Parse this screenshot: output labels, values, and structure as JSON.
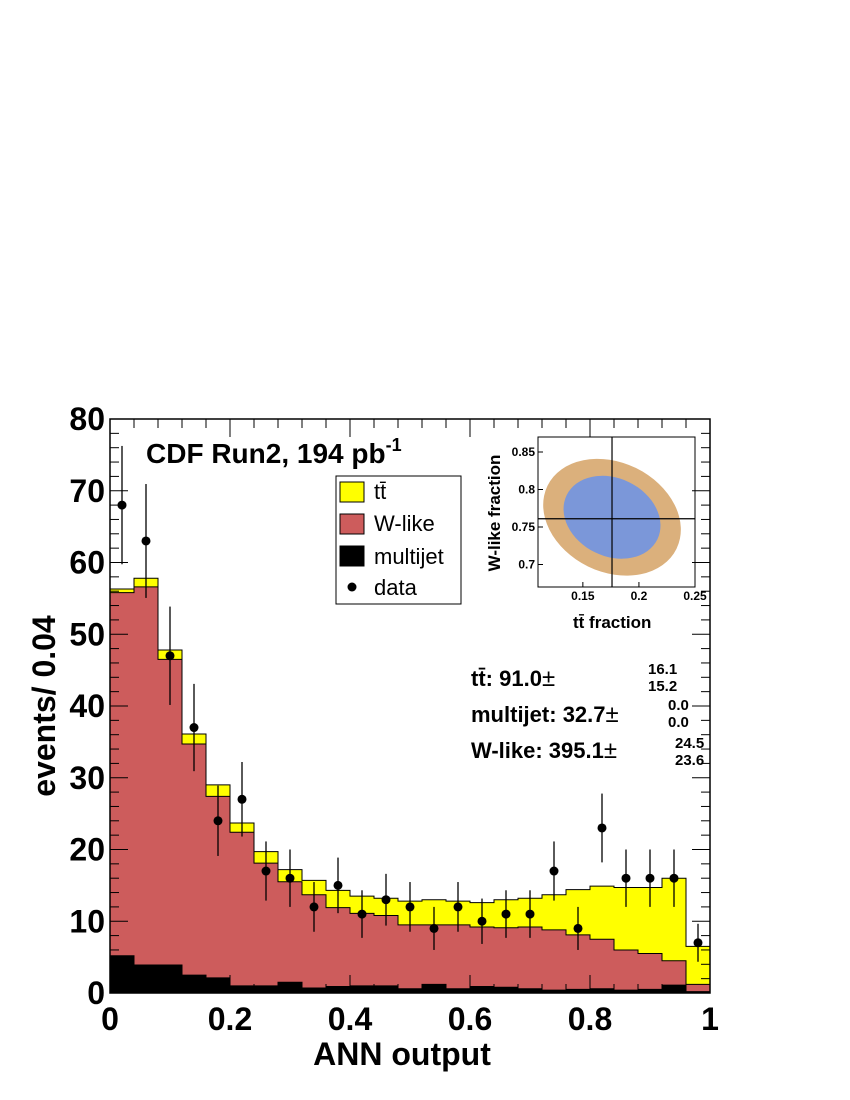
{
  "chart_data": {
    "type": "bar",
    "xlabel": "ANN output",
    "ylabel": "events/ 0.04",
    "xlim": [
      0,
      1
    ],
    "ylim": [
      0,
      80
    ],
    "x_ticks": [
      "0",
      "0.2",
      "0.4",
      "0.6",
      "0.8",
      "1"
    ],
    "y_ticks": [
      "0",
      "10",
      "20",
      "30",
      "40",
      "50",
      "60",
      "70",
      "80"
    ],
    "title_main": "CDF Run2, 194 pb",
    "title_sup": "-1",
    "colors": {
      "ttbar": "#ffff00",
      "wlike": "#cd5c5c",
      "multijet": "#000000",
      "data": "#000000"
    },
    "bin_edges": [
      0,
      0.04,
      0.08,
      0.12,
      0.16,
      0.2,
      0.24,
      0.28,
      0.32,
      0.36,
      0.4,
      0.44,
      0.48,
      0.52,
      0.56,
      0.6,
      0.64,
      0.68,
      0.72,
      0.76,
      0.8,
      0.84,
      0.88,
      0.92,
      0.96,
      1.0
    ],
    "series": [
      {
        "name": "multijet",
        "values": [
          5.2,
          3.9,
          3.9,
          2.5,
          2.1,
          1.0,
          1.0,
          1.5,
          0.7,
          0.9,
          1.0,
          1.0,
          0.6,
          1.2,
          0.6,
          0.9,
          0.8,
          0.6,
          0.4,
          0.5,
          0.6,
          0.4,
          0.5,
          1.1,
          0.2
        ]
      },
      {
        "name": "W-like",
        "values": [
          50.6,
          52.7,
          42.6,
          32.2,
          25.3,
          21.4,
          17.1,
          14.0,
          13.0,
          11.0,
          10.1,
          9.8,
          8.9,
          8.3,
          8.9,
          8.3,
          8.3,
          8.6,
          8.4,
          7.6,
          6.9,
          5.6,
          5.0,
          3.4,
          1.0
        ]
      },
      {
        "name": "tt̄",
        "values": [
          0.5,
          1.2,
          1.3,
          1.4,
          1.6,
          1.3,
          1.6,
          1.7,
          2.0,
          2.4,
          2.4,
          2.4,
          3.3,
          3.5,
          3.3,
          3.4,
          3.9,
          4.0,
          4.9,
          6.3,
          7.4,
          8.7,
          9.2,
          11.5,
          5.3
        ]
      }
    ],
    "data_points": {
      "name": "data",
      "x": [
        0.02,
        0.06,
        0.1,
        0.14,
        0.18,
        0.22,
        0.26,
        0.3,
        0.34,
        0.38,
        0.42,
        0.46,
        0.5,
        0.54,
        0.58,
        0.62,
        0.66,
        0.7,
        0.74,
        0.78,
        0.82,
        0.86,
        0.9,
        0.94,
        0.98
      ],
      "y": [
        68,
        63,
        47,
        37,
        24,
        27,
        17,
        16,
        12,
        15,
        11,
        13,
        12,
        9,
        12,
        10,
        11,
        11,
        17,
        9,
        23,
        16,
        16,
        16,
        7
      ]
    },
    "legend": [
      {
        "label": "tt̄",
        "key": "ttbar"
      },
      {
        "label": "W-like",
        "key": "wlike"
      },
      {
        "label": "multijet",
        "key": "multijet"
      },
      {
        "label": "data",
        "key": "data"
      }
    ],
    "fit_results": [
      {
        "label": "tt̄:",
        "value": "91.0",
        "pm": "±",
        "up": "16.1",
        "down": "15.2"
      },
      {
        "label": "multijet:",
        "value": "32.7",
        "pm": "±",
        "up": "0.0",
        "down": "0.0"
      },
      {
        "label": "W-like:",
        "value": "395.1",
        "pm": "±",
        "up": "24.5",
        "down": "23.6"
      }
    ],
    "inset": {
      "type": "contour",
      "xlabel": "tt̄ fraction",
      "ylabel": "W-like fraction",
      "xlim": [
        0.11,
        0.25
      ],
      "ylim": [
        0.67,
        0.87
      ],
      "x_ticks": [
        0.15,
        0.2,
        0.25
      ],
      "x_tick_labels": [
        "0.15",
        "0.2",
        "0.25"
      ],
      "y_ticks": [
        0.7,
        0.75,
        0.8,
        0.85
      ],
      "y_tick_labels": [
        "0.7",
        "0.75",
        "0.8",
        "0.85"
      ],
      "best_fit": [
        0.176,
        0.761
      ],
      "contour_1sigma": {
        "center": [
          0.176,
          0.763
        ],
        "half_width": 0.045,
        "half_height": 0.052,
        "rotation_deg": 26,
        "color": "#7b97d9"
      },
      "contour_2sigma": {
        "center": [
          0.176,
          0.763
        ],
        "half_width": 0.064,
        "half_height": 0.073,
        "rotation_deg": 26,
        "color": "#dbb07c"
      }
    }
  }
}
